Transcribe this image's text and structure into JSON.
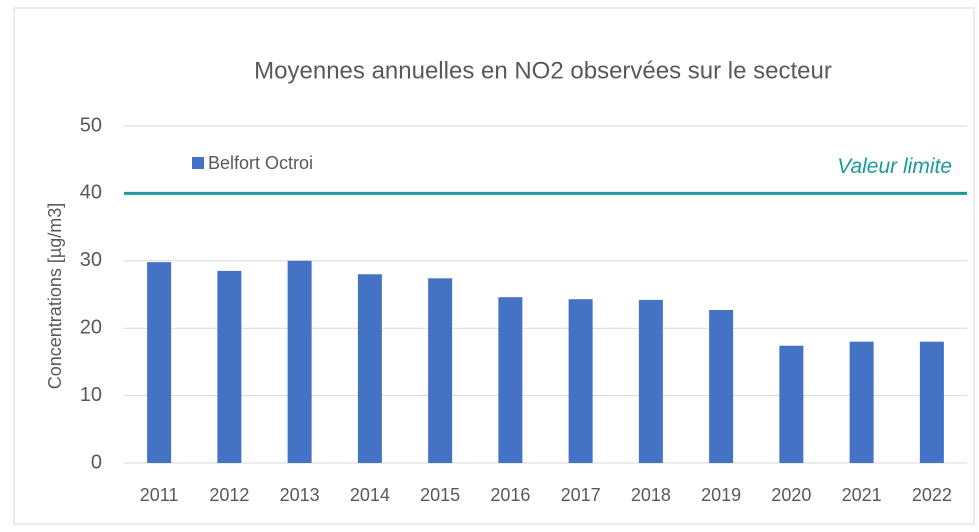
{
  "chart_data": {
    "type": "bar",
    "title": "Moyennes annuelles en NO2 observées sur le secteur",
    "y_label": "Concentrations [µg/m3]",
    "categories": [
      "2011",
      "2012",
      "2013",
      "2014",
      "2015",
      "2016",
      "2017",
      "2018",
      "2019",
      "2020",
      "2021",
      "2022"
    ],
    "series": [
      {
        "name": "Belfort Octroi",
        "color": "#4472c4",
        "values": [
          29.8,
          28.5,
          30,
          28,
          27.4,
          24.6,
          24.3,
          24.2,
          22.7,
          17.4,
          18,
          18
        ]
      }
    ],
    "ylim": [
      0,
      50
    ],
    "yticks": [
      0,
      10,
      20,
      30,
      40,
      50
    ],
    "grid": true,
    "limit_line": {
      "label": "Valeur limite",
      "value": 40,
      "color": "#1a9a9a"
    },
    "legend": "top-left"
  }
}
